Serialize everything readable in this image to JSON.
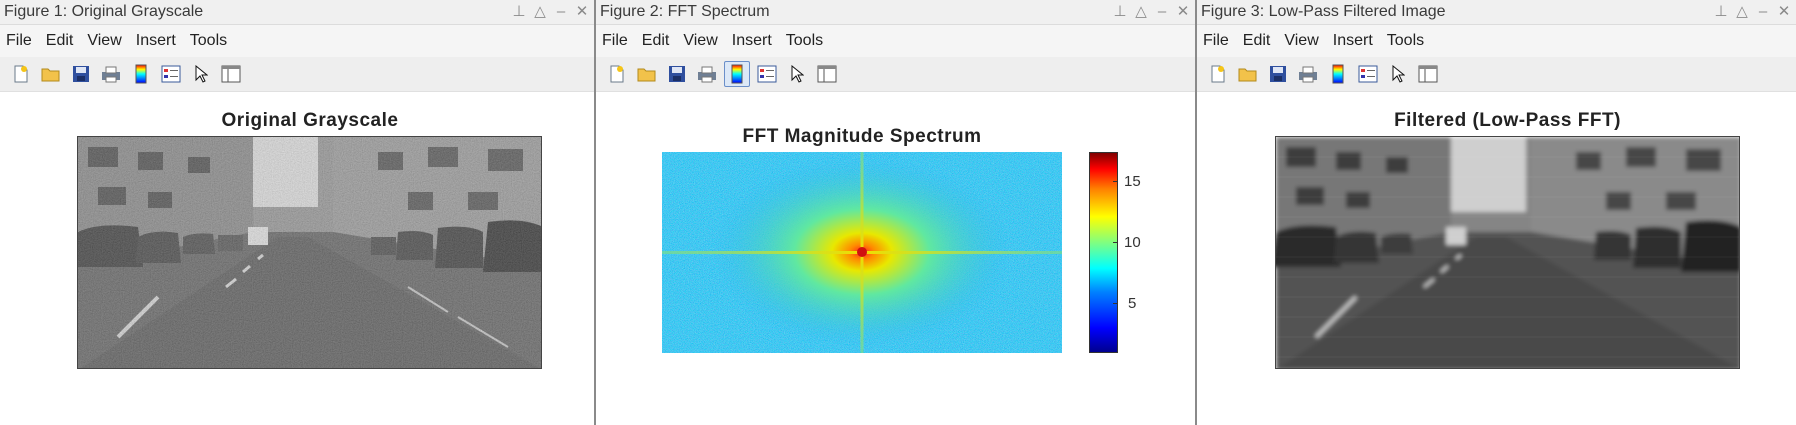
{
  "menu": [
    "File",
    "Edit",
    "View",
    "Insert",
    "Tools"
  ],
  "window_controls": [
    "pin-icon",
    "maximize-icon",
    "minimize-icon",
    "close-icon"
  ],
  "toolbar_icons": [
    "new-figure-icon",
    "open-file-icon",
    "save-icon",
    "print-icon",
    "colorbar-icon",
    "legend-icon",
    "pointer-icon",
    "property-inspector-icon"
  ],
  "figures": [
    {
      "window_title": "Figure 1: Original Grayscale",
      "axes_title": "Original Grayscale"
    },
    {
      "window_title": "Figure 2: FFT Spectrum",
      "axes_title": "FFT Magnitude Spectrum",
      "colorbar_ticks": [
        "15",
        "10",
        "5"
      ]
    },
    {
      "window_title": "Figure 3: Low-Pass Filtered Image",
      "axes_title": "Filtered (Low-Pass FFT)"
    }
  ],
  "colors": {
    "titlebar_bg": "#f0f0f0",
    "menubar_bg": "#f5f5f5",
    "toolbar_bg": "#eeeeee",
    "active_tool": "#dce8f7",
    "separator": "#8a8a8a"
  }
}
